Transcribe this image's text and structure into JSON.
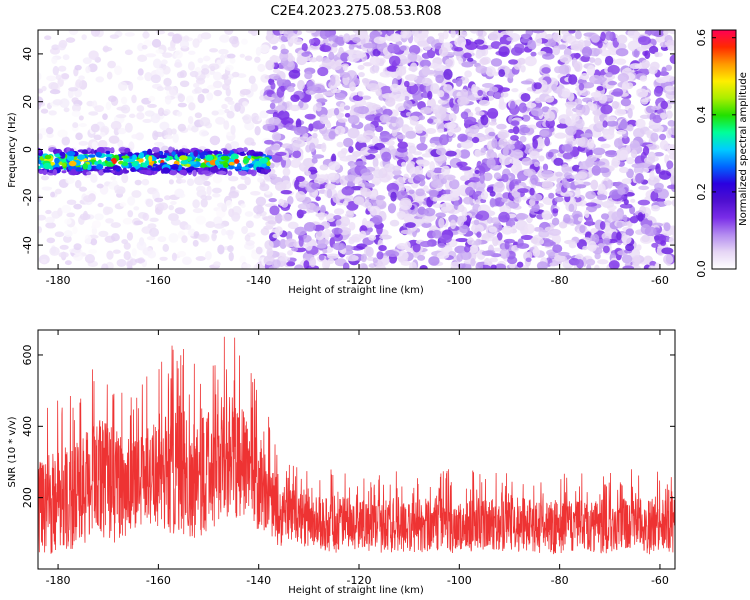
{
  "title": "C2E4.2023.275.08.53.R08",
  "chart_data": [
    {
      "type": "heatmap",
      "xlabel": "Height of straight line (km)",
      "ylabel": "Frequency (Hz)",
      "xlim": [
        -184,
        -57
      ],
      "ylim": [
        -50,
        50
      ],
      "xticks": [
        -180,
        -160,
        -140,
        -120,
        -100,
        -80,
        -60
      ],
      "yticks": [
        -40,
        -20,
        0,
        20,
        40
      ],
      "colorbar": {
        "label": "Normalized spectral amplitude",
        "range": [
          0.0,
          0.62
        ],
        "ticks": [
          0.0,
          0.2,
          0.4,
          0.6
        ],
        "colors": [
          "#ffffff",
          "#e6d6f5",
          "#b48cf0",
          "#7a2de8",
          "#4e0fd0",
          "#2a00e0",
          "#0066ff",
          "#00ccff",
          "#00ff99",
          "#22e000",
          "#aaee00",
          "#ffee00",
          "#ff9900",
          "#ff2a00",
          "#ff0055"
        ]
      },
      "features": [
        {
          "label": "signal band",
          "x_range": [
            -184,
            -138
          ],
          "frequency_hz": -5,
          "amplitude_range": [
            0.2,
            0.62
          ]
        },
        {
          "label": "noise region",
          "x_range": [
            -138,
            -57
          ],
          "amplitude_range": [
            0.03,
            0.15
          ]
        }
      ]
    },
    {
      "type": "line",
      "xlabel": "Height of straight line (km)",
      "ylabel": "SNR (10 * v/v)",
      "xlim": [
        -184,
        -57
      ],
      "ylim": [
        0,
        670
      ],
      "xticks": [
        -180,
        -160,
        -140,
        -120,
        -100,
        -80,
        -60
      ],
      "yticks": [
        200,
        400,
        600
      ],
      "series": [
        {
          "color": "#ee3333",
          "x": [
            -184,
            -180,
            -176,
            -172,
            -168,
            -164,
            -160,
            -156,
            -152,
            -148,
            -144,
            -140,
            -136,
            -132,
            -128,
            -124,
            -120,
            -116,
            -112,
            -108,
            -104,
            -100,
            -96,
            -92,
            -88,
            -84,
            -80,
            -76,
            -72,
            -68,
            -64,
            -60,
            -57
          ],
          "mean": [
            170,
            190,
            210,
            260,
            230,
            250,
            270,
            280,
            250,
            300,
            320,
            250,
            150,
            140,
            130,
            125,
            125,
            120,
            125,
            120,
            125,
            120,
            125,
            120,
            125,
            120,
            120,
            125,
            120,
            125,
            120,
            125,
            120
          ],
          "peak": [
            450,
            480,
            520,
            590,
            560,
            500,
            600,
            650,
            580,
            660,
            670,
            540,
            330,
            290,
            280,
            290,
            270,
            270,
            280,
            270,
            290,
            270,
            280,
            270,
            280,
            270,
            280,
            270,
            280,
            270,
            290,
            280,
            270
          ]
        }
      ]
    }
  ]
}
